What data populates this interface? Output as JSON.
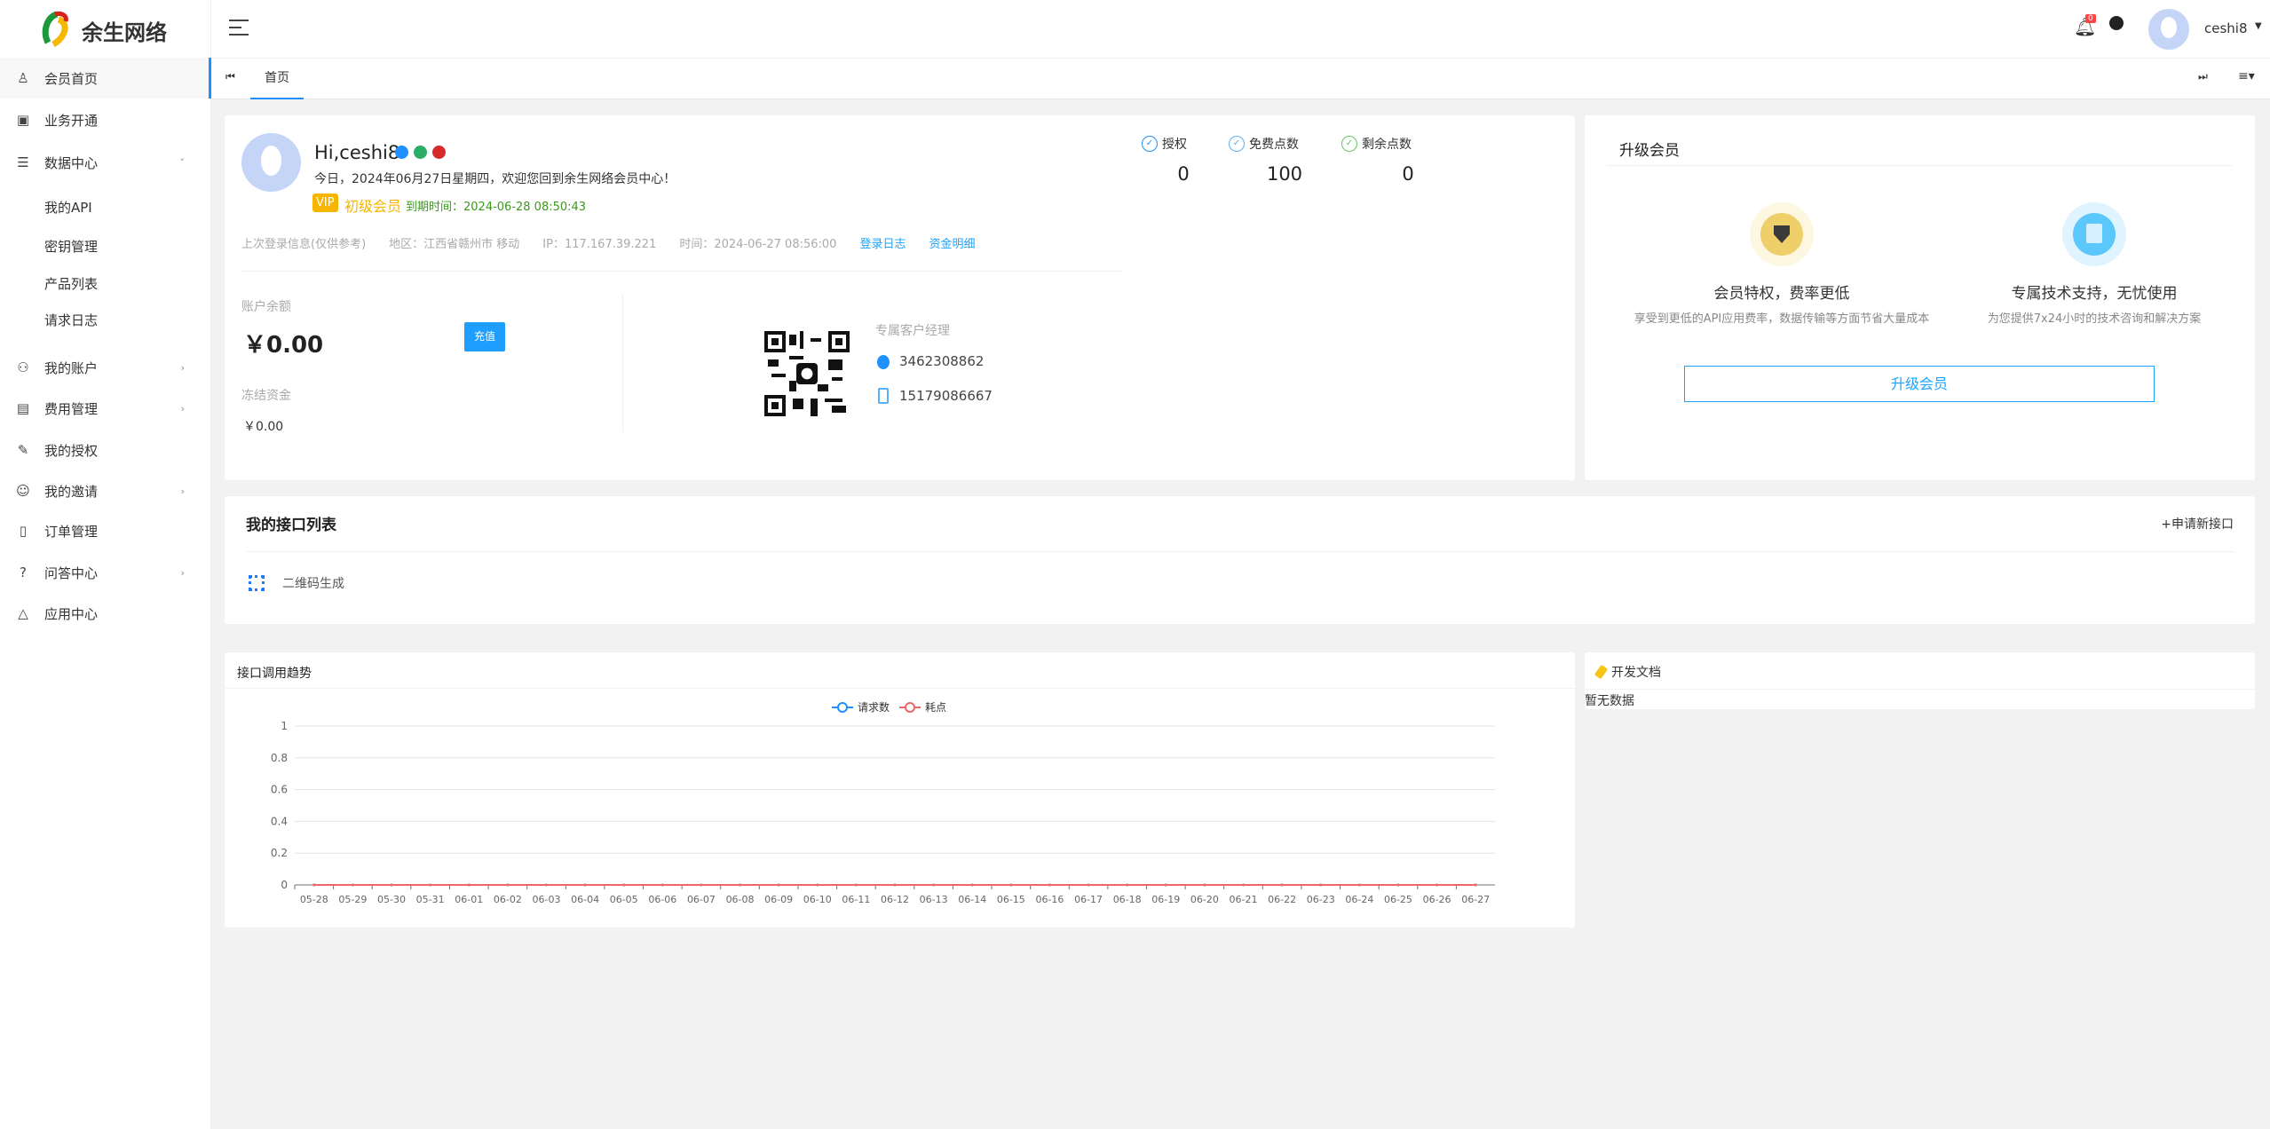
{
  "brand": {
    "name": "余生网络"
  },
  "sidebar": {
    "items": [
      {
        "label": "会员首页",
        "icon": "user-icon",
        "active": true
      },
      {
        "label": "业务开通",
        "icon": "calendar-icon"
      },
      {
        "label": "数据中心",
        "icon": "database-icon",
        "expanded": true
      },
      {
        "label": "我的API",
        "sub": true
      },
      {
        "label": "密钥管理",
        "sub": true
      },
      {
        "label": "产品列表",
        "sub": true
      },
      {
        "label": "请求日志",
        "sub": true
      },
      {
        "label": "我的账户",
        "icon": "account-icon",
        "arrow": true
      },
      {
        "label": "费用管理",
        "icon": "fee-icon",
        "arrow": true
      },
      {
        "label": "我的授权",
        "icon": "authorize-icon"
      },
      {
        "label": "我的邀请",
        "icon": "invite-icon",
        "arrow": true
      },
      {
        "label": "订单管理",
        "icon": "clipboard-icon"
      },
      {
        "label": "问答中心",
        "icon": "question-user-icon",
        "arrow": true
      },
      {
        "label": "应用中心",
        "icon": "apps-icon"
      }
    ]
  },
  "header": {
    "notification_count": "0",
    "username": "ceshi8"
  },
  "tabs": {
    "items": [
      {
        "label": "首页",
        "active": true
      }
    ]
  },
  "profile": {
    "greeting": "Hi,ceshi8",
    "welcome": "今日，2024年06月27日星期四，欢迎您回到余生网络会员中心！",
    "vip_badge": "VIP",
    "level": "初级会员",
    "expire": "到期时间：2024-06-28 08:50:43",
    "last_login_label": "上次登录信息(仅供参考)",
    "region": "地区：江西省赣州市 移动",
    "ip": "IP：117.167.39.221",
    "time": "时间：2024-06-27 08:56:00",
    "login_log": "登录日志",
    "fund_detail": "资金明细"
  },
  "stats": [
    {
      "label": "授权",
      "value": "0",
      "color": "#1e90ff"
    },
    {
      "label": "免费点数",
      "value": "100",
      "color": "#5ab0f5"
    },
    {
      "label": "剩余点数",
      "value": "0",
      "color": "#5cc85c"
    }
  ],
  "balance": {
    "label": "账户余额",
    "value": "￥0.00",
    "recharge": "充值",
    "frozen_label": "冻结资金",
    "frozen_value": "￥0.00"
  },
  "manager": {
    "title": "专属客户经理",
    "qq": "3462308862",
    "phone": "15179086667"
  },
  "upgrade": {
    "title": "升级会员",
    "features": [
      {
        "title": "会员特权，费率更低",
        "desc": "享受到更低的API应用费率，数据传输等方面节省大量成本"
      },
      {
        "title": "专属技术支持，无忧使用",
        "desc": "为您提供7x24小时的技术咨询和解决方案"
      }
    ],
    "button": "升级会员"
  },
  "api_list": {
    "title": "我的接口列表",
    "add": "+申请新接口",
    "items": [
      {
        "name": "二维码生成"
      }
    ]
  },
  "docs": {
    "title": "开发文档",
    "empty": "暂无数据"
  },
  "chart_data": {
    "type": "line",
    "title": "接口调用趋势",
    "categories": [
      "05-28",
      "05-29",
      "05-30",
      "05-31",
      "06-01",
      "06-02",
      "06-03",
      "06-04",
      "06-05",
      "06-06",
      "06-07",
      "06-08",
      "06-09",
      "06-10",
      "06-11",
      "06-12",
      "06-13",
      "06-14",
      "06-15",
      "06-16",
      "06-17",
      "06-18",
      "06-19",
      "06-20",
      "06-21",
      "06-22",
      "06-23",
      "06-24",
      "06-25",
      "06-26",
      "06-27"
    ],
    "series": [
      {
        "name": "请求数",
        "color": "#1e90ff",
        "values": [
          0,
          0,
          0,
          0,
          0,
          0,
          0,
          0,
          0,
          0,
          0,
          0,
          0,
          0,
          0,
          0,
          0,
          0,
          0,
          0,
          0,
          0,
          0,
          0,
          0,
          0,
          0,
          0,
          0,
          0,
          0
        ]
      },
      {
        "name": "耗点",
        "color": "#ee6666",
        "values": [
          0,
          0,
          0,
          0,
          0,
          0,
          0,
          0,
          0,
          0,
          0,
          0,
          0,
          0,
          0,
          0,
          0,
          0,
          0,
          0,
          0,
          0,
          0,
          0,
          0,
          0,
          0,
          0,
          0,
          0,
          0
        ]
      }
    ],
    "ylim": [
      0,
      1
    ],
    "yticks": [
      "0",
      "0.2",
      "0.4",
      "0.6",
      "0.8",
      "1"
    ],
    "grid": true,
    "legend": "top-center"
  }
}
